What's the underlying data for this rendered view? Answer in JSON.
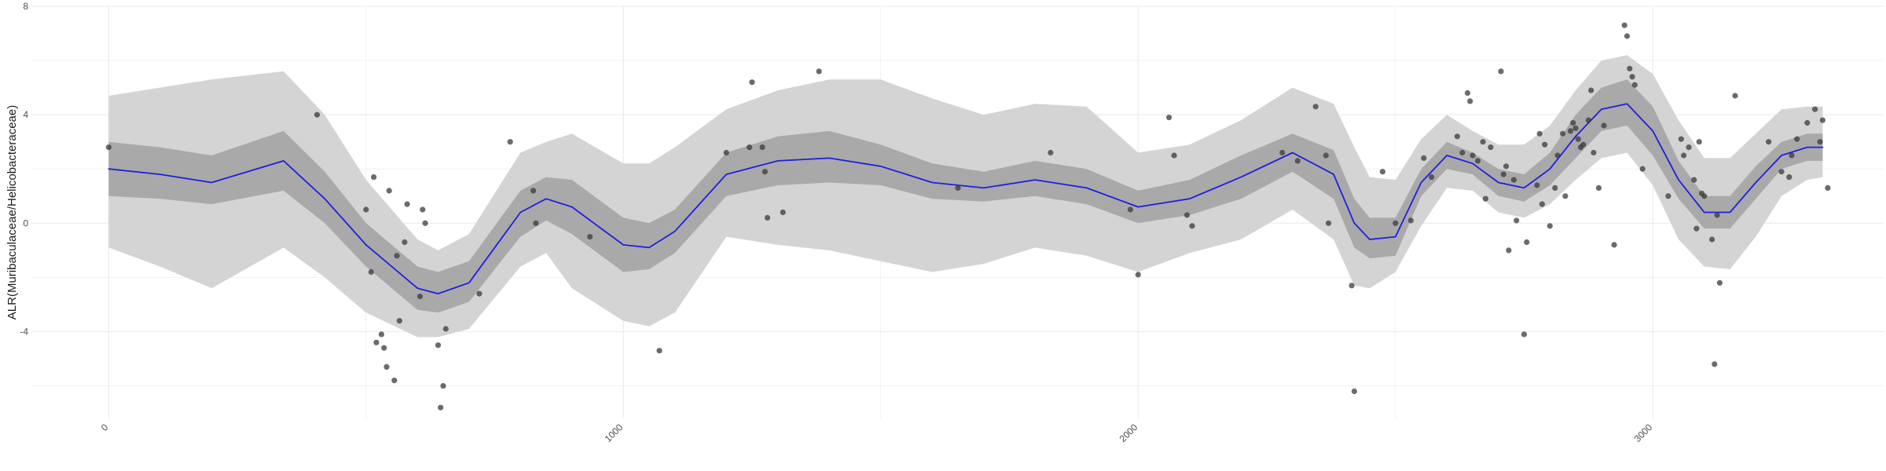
{
  "chart_data": {
    "type": "scatter",
    "title": "",
    "xlabel": "",
    "ylabel": "ALR(Muribaculaceae/Helicobacteraceae)",
    "xlim": [
      -150,
      3450
    ],
    "ylim": [
      -7.2,
      8
    ],
    "x_ticks": [
      0,
      1000,
      2000,
      3000
    ],
    "x_tick_labels": [
      "0",
      "1000",
      "2000",
      "3000"
    ],
    "y_ticks": [
      -4,
      0,
      4,
      8
    ],
    "y_tick_labels": [
      "-4",
      "0",
      "4",
      "8"
    ],
    "grid": true,
    "legend": "none",
    "colors": {
      "trend_line": "#1f1fe0",
      "outer_band": "#d4d4d4",
      "inner_band": "#a9a9a9",
      "points": "#3a3a3a",
      "grid": "#ebebeb"
    },
    "points": [
      [
        0,
        2.8
      ],
      [
        405,
        4.0
      ],
      [
        500,
        0.5
      ],
      [
        510,
        -1.8
      ],
      [
        515,
        1.7
      ],
      [
        520,
        -4.4
      ],
      [
        530,
        -4.1
      ],
      [
        535,
        -4.6
      ],
      [
        540,
        -5.3
      ],
      [
        545,
        1.2
      ],
      [
        555,
        -5.8
      ],
      [
        560,
        -1.2
      ],
      [
        565,
        -3.6
      ],
      [
        575,
        -0.7
      ],
      [
        580,
        0.7
      ],
      [
        605,
        -2.7
      ],
      [
        610,
        0.5
      ],
      [
        615,
        0.0
      ],
      [
        640,
        -4.5
      ],
      [
        645,
        -6.8
      ],
      [
        650,
        -6.0
      ],
      [
        655,
        -3.9
      ],
      [
        720,
        -2.6
      ],
      [
        780,
        3.0
      ],
      [
        825,
        1.2
      ],
      [
        830,
        0.0
      ],
      [
        935,
        -0.5
      ],
      [
        1070,
        -4.7
      ],
      [
        1200,
        2.6
      ],
      [
        1245,
        2.8
      ],
      [
        1250,
        5.2
      ],
      [
        1270,
        2.8
      ],
      [
        1275,
        1.9
      ],
      [
        1280,
        0.2
      ],
      [
        1310,
        0.4
      ],
      [
        1380,
        5.6
      ],
      [
        1650,
        1.3
      ],
      [
        1830,
        2.6
      ],
      [
        1985,
        0.5
      ],
      [
        2000,
        -1.9
      ],
      [
        2060,
        3.9
      ],
      [
        2070,
        2.5
      ],
      [
        2095,
        0.3
      ],
      [
        2105,
        -0.1
      ],
      [
        2280,
        2.6
      ],
      [
        2310,
        2.3
      ],
      [
        2345,
        4.3
      ],
      [
        2365,
        2.5
      ],
      [
        2370,
        0.0
      ],
      [
        2415,
        -2.3
      ],
      [
        2420,
        -6.2
      ],
      [
        2475,
        1.9
      ],
      [
        2500,
        0.0
      ],
      [
        2530,
        0.1
      ],
      [
        2555,
        2.4
      ],
      [
        2570,
        1.7
      ],
      [
        2620,
        3.2
      ],
      [
        2630,
        2.6
      ],
      [
        2640,
        4.8
      ],
      [
        2645,
        4.5
      ],
      [
        2650,
        2.5
      ],
      [
        2660,
        2.3
      ],
      [
        2670,
        3.0
      ],
      [
        2675,
        0.9
      ],
      [
        2685,
        2.8
      ],
      [
        2705,
        5.6
      ],
      [
        2710,
        1.8
      ],
      [
        2715,
        2.1
      ],
      [
        2720,
        -1.0
      ],
      [
        2730,
        1.6
      ],
      [
        2735,
        0.1
      ],
      [
        2750,
        -4.1
      ],
      [
        2755,
        -0.7
      ],
      [
        2775,
        1.4
      ],
      [
        2780,
        3.3
      ],
      [
        2785,
        0.7
      ],
      [
        2790,
        2.9
      ],
      [
        2800,
        -0.1
      ],
      [
        2810,
        1.3
      ],
      [
        2815,
        2.5
      ],
      [
        2825,
        3.3
      ],
      [
        2830,
        1.0
      ],
      [
        2840,
        3.4
      ],
      [
        2845,
        3.7
      ],
      [
        2850,
        3.5
      ],
      [
        2855,
        3.1
      ],
      [
        2860,
        2.8
      ],
      [
        2865,
        2.9
      ],
      [
        2875,
        3.8
      ],
      [
        2880,
        4.9
      ],
      [
        2885,
        2.6
      ],
      [
        2895,
        1.3
      ],
      [
        2905,
        3.6
      ],
      [
        2925,
        -0.8
      ],
      [
        2945,
        7.3
      ],
      [
        2950,
        6.9
      ],
      [
        2955,
        5.7
      ],
      [
        2960,
        5.4
      ],
      [
        2965,
        5.1
      ],
      [
        2980,
        2.0
      ],
      [
        3030,
        1.0
      ],
      [
        3055,
        3.1
      ],
      [
        3060,
        2.5
      ],
      [
        3070,
        2.8
      ],
      [
        3080,
        1.6
      ],
      [
        3085,
        -0.2
      ],
      [
        3090,
        3.0
      ],
      [
        3095,
        1.1
      ],
      [
        3100,
        1.0
      ],
      [
        3115,
        -0.6
      ],
      [
        3120,
        -5.2
      ],
      [
        3125,
        0.3
      ],
      [
        3130,
        -2.2
      ],
      [
        3160,
        4.7
      ],
      [
        3225,
        3.0
      ],
      [
        3250,
        1.9
      ],
      [
        3265,
        1.7
      ],
      [
        3270,
        2.5
      ],
      [
        3280,
        3.1
      ],
      [
        3300,
        3.7
      ],
      [
        3315,
        4.2
      ],
      [
        3330,
        3.8
      ],
      [
        3340,
        1.3
      ],
      [
        3325,
        3.0
      ]
    ],
    "trend": {
      "x": [
        0,
        100,
        200,
        340,
        420,
        500,
        600,
        640,
        700,
        800,
        850,
        900,
        1000,
        1050,
        1100,
        1200,
        1300,
        1400,
        1500,
        1600,
        1700,
        1800,
        1900,
        2000,
        2100,
        2200,
        2300,
        2380,
        2420,
        2450,
        2500,
        2550,
        2600,
        2650,
        2700,
        2750,
        2800,
        2850,
        2900,
        2950,
        3000,
        3050,
        3100,
        3150,
        3200,
        3250,
        3300,
        3330
      ],
      "y": [
        2.0,
        1.8,
        1.5,
        2.3,
        0.9,
        -0.8,
        -2.4,
        -2.6,
        -2.2,
        0.4,
        0.9,
        0.6,
        -0.8,
        -0.9,
        -0.3,
        1.8,
        2.3,
        2.4,
        2.1,
        1.5,
        1.3,
        1.6,
        1.3,
        0.6,
        0.9,
        1.7,
        2.6,
        1.8,
        0.0,
        -0.6,
        -0.5,
        1.5,
        2.5,
        2.2,
        1.5,
        1.3,
        2.0,
        3.2,
        4.2,
        4.4,
        3.4,
        1.6,
        0.4,
        0.4,
        1.5,
        2.5,
        2.8,
        2.8
      ],
      "ci_inner_lower": [
        1.0,
        0.9,
        0.7,
        1.2,
        0.0,
        -1.6,
        -3.2,
        -3.3,
        -2.9,
        -0.5,
        0.1,
        -0.4,
        -1.8,
        -1.7,
        -1.1,
        1.0,
        1.4,
        1.5,
        1.4,
        0.9,
        0.8,
        1.0,
        0.7,
        0.0,
        0.3,
        0.9,
        1.9,
        0.9,
        -0.9,
        -1.3,
        -1.2,
        1.0,
        2.0,
        1.8,
        1.0,
        0.8,
        1.4,
        2.4,
        3.4,
        3.6,
        2.5,
        0.9,
        -0.2,
        -0.2,
        0.9,
        2.0,
        2.3,
        2.3
      ],
      "ci_inner_upper": [
        3.0,
        2.8,
        2.5,
        3.4,
        1.9,
        0.0,
        -1.6,
        -1.8,
        -1.4,
        1.2,
        1.7,
        1.6,
        0.2,
        0.0,
        0.5,
        2.6,
        3.2,
        3.4,
        2.9,
        2.2,
        1.9,
        2.3,
        2.0,
        1.2,
        1.6,
        2.5,
        3.3,
        2.7,
        0.9,
        0.2,
        0.2,
        2.0,
        3.0,
        2.6,
        2.0,
        1.8,
        2.6,
        4.0,
        5.0,
        5.3,
        4.3,
        2.3,
        1.0,
        1.0,
        2.1,
        3.0,
        3.3,
        3.3
      ],
      "ci_outer_lower": [
        -0.9,
        -1.6,
        -2.4,
        -0.9,
        -2.0,
        -3.3,
        -4.2,
        -4.2,
        -3.9,
        -1.6,
        -1.1,
        -2.4,
        -3.6,
        -3.8,
        -3.3,
        -0.5,
        -0.8,
        -1.0,
        -1.4,
        -1.8,
        -1.5,
        -0.9,
        -1.2,
        -1.8,
        -1.1,
        -0.6,
        0.5,
        -0.6,
        -2.3,
        -2.4,
        -1.8,
        -0.1,
        1.3,
        1.2,
        0.4,
        0.2,
        0.7,
        1.6,
        2.4,
        2.6,
        1.4,
        -0.6,
        -1.6,
        -1.7,
        -0.5,
        1.0,
        1.6,
        1.7
      ],
      "ci_outer_upper": [
        4.7,
        5.0,
        5.3,
        5.6,
        4.0,
        1.6,
        -0.6,
        -1.0,
        -0.4,
        2.6,
        3.0,
        3.3,
        2.2,
        2.2,
        2.8,
        4.2,
        4.9,
        5.3,
        5.3,
        4.6,
        4.0,
        4.4,
        4.3,
        2.6,
        2.9,
        3.8,
        5.0,
        4.4,
        2.8,
        1.7,
        1.6,
        3.1,
        4.0,
        3.4,
        2.9,
        2.9,
        3.6,
        4.9,
        6.0,
        6.2,
        5.5,
        3.8,
        2.4,
        2.4,
        3.3,
        4.2,
        4.3,
        4.3
      ]
    }
  }
}
